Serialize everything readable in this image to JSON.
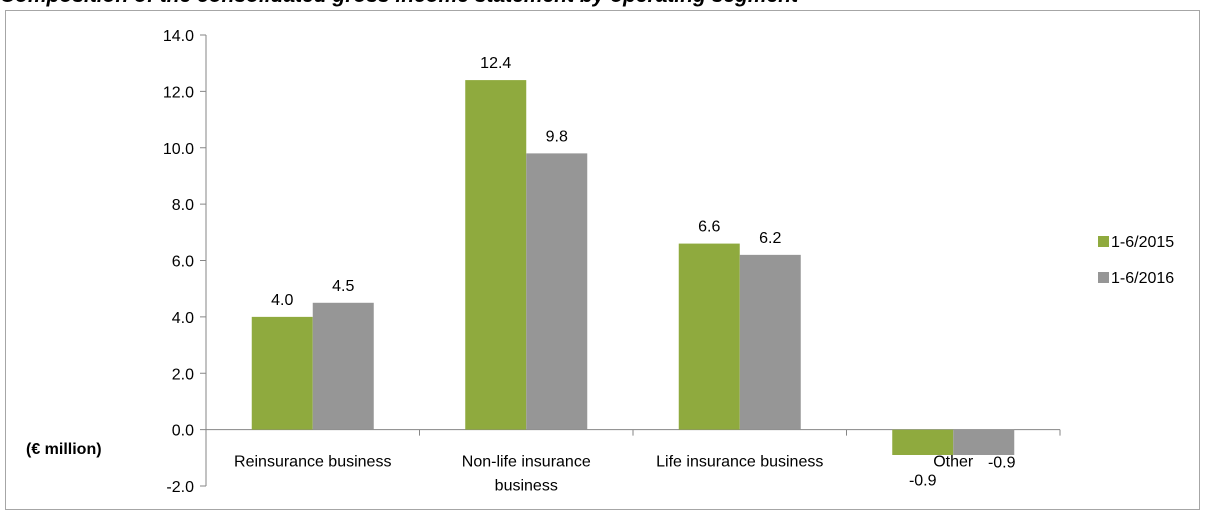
{
  "chart_data": {
    "type": "bar",
    "title": "Composition of the consolidated gross income statement by operating segment",
    "ylabel": "(€ million)",
    "categories": [
      "Reinsurance business",
      "Non-life insurance business",
      "Life insurance business",
      "Other"
    ],
    "category_lines": [
      [
        "Reinsurance business"
      ],
      [
        "Non-life insurance",
        "business"
      ],
      [
        "Life insurance business"
      ],
      [
        "Other"
      ]
    ],
    "series": [
      {
        "name": "1-6/2015",
        "values": [
          4.0,
          12.4,
          6.6,
          -0.9
        ],
        "labels": [
          "4.0",
          "12.4",
          "6.6",
          "-0.9"
        ],
        "color": "#8faa3e"
      },
      {
        "name": "1-6/2016",
        "values": [
          4.5,
          9.8,
          6.2,
          -0.9
        ],
        "labels": [
          "4.5",
          "9.8",
          "6.2",
          "-0.9"
        ],
        "color": "#969696"
      }
    ],
    "ylim": [
      -2.0,
      14.0
    ],
    "yticks": [
      "-2.0",
      "0.0",
      "2.0",
      "4.0",
      "6.0",
      "8.0",
      "10.0",
      "12.0",
      "14.0"
    ],
    "grid": false,
    "legend_position": "right"
  }
}
